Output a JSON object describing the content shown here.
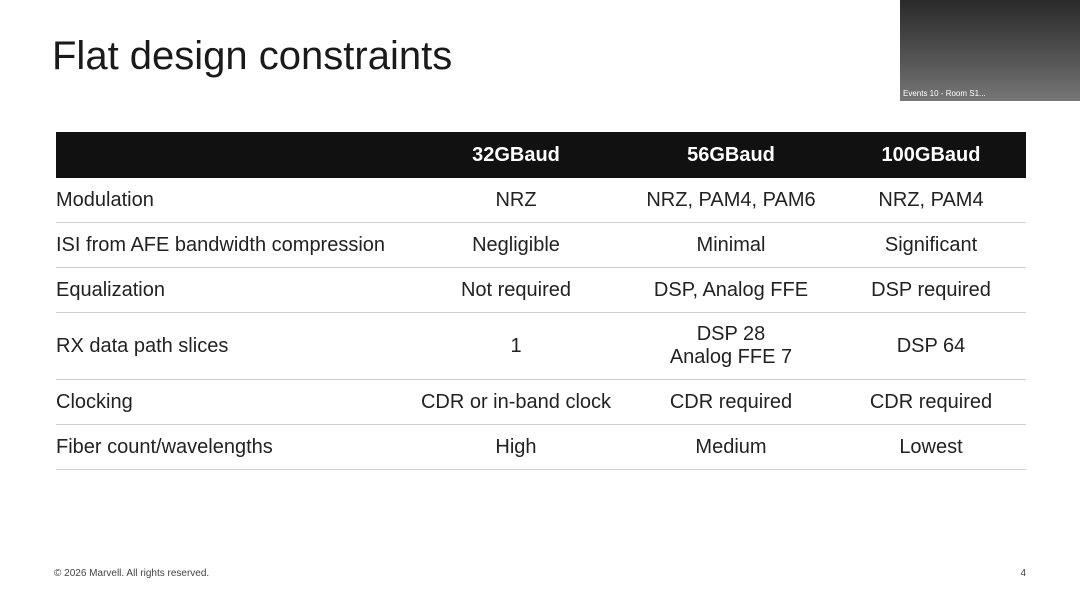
{
  "slide": {
    "title": "Flat design constraints",
    "table": {
      "header": [
        "",
        "32GBaud",
        "56GBaud",
        "100GBaud"
      ],
      "rows": [
        [
          "Modulation",
          "NRZ",
          "NRZ, PAM4, PAM6",
          "NRZ, PAM4"
        ],
        [
          "ISI from AFE bandwidth compression",
          "Negligible",
          "Minimal",
          "Significant"
        ],
        [
          "Equalization",
          "Not required",
          "DSP, Analog FFE",
          "DSP required"
        ],
        [
          "RX data path slices",
          "1",
          [
            "DSP 28",
            "Analog FFE 7"
          ],
          "DSP 64"
        ],
        [
          "Clocking",
          "CDR or in-band clock",
          "CDR required",
          "CDR required"
        ],
        [
          "Fiber count/wavelengths",
          "High",
          "Medium",
          "Lowest"
        ]
      ]
    },
    "footer": "© 2026 Marvell. All rights reserved.",
    "page_number": "4"
  },
  "video": {
    "caption": "Events 10 - Room S1..."
  }
}
